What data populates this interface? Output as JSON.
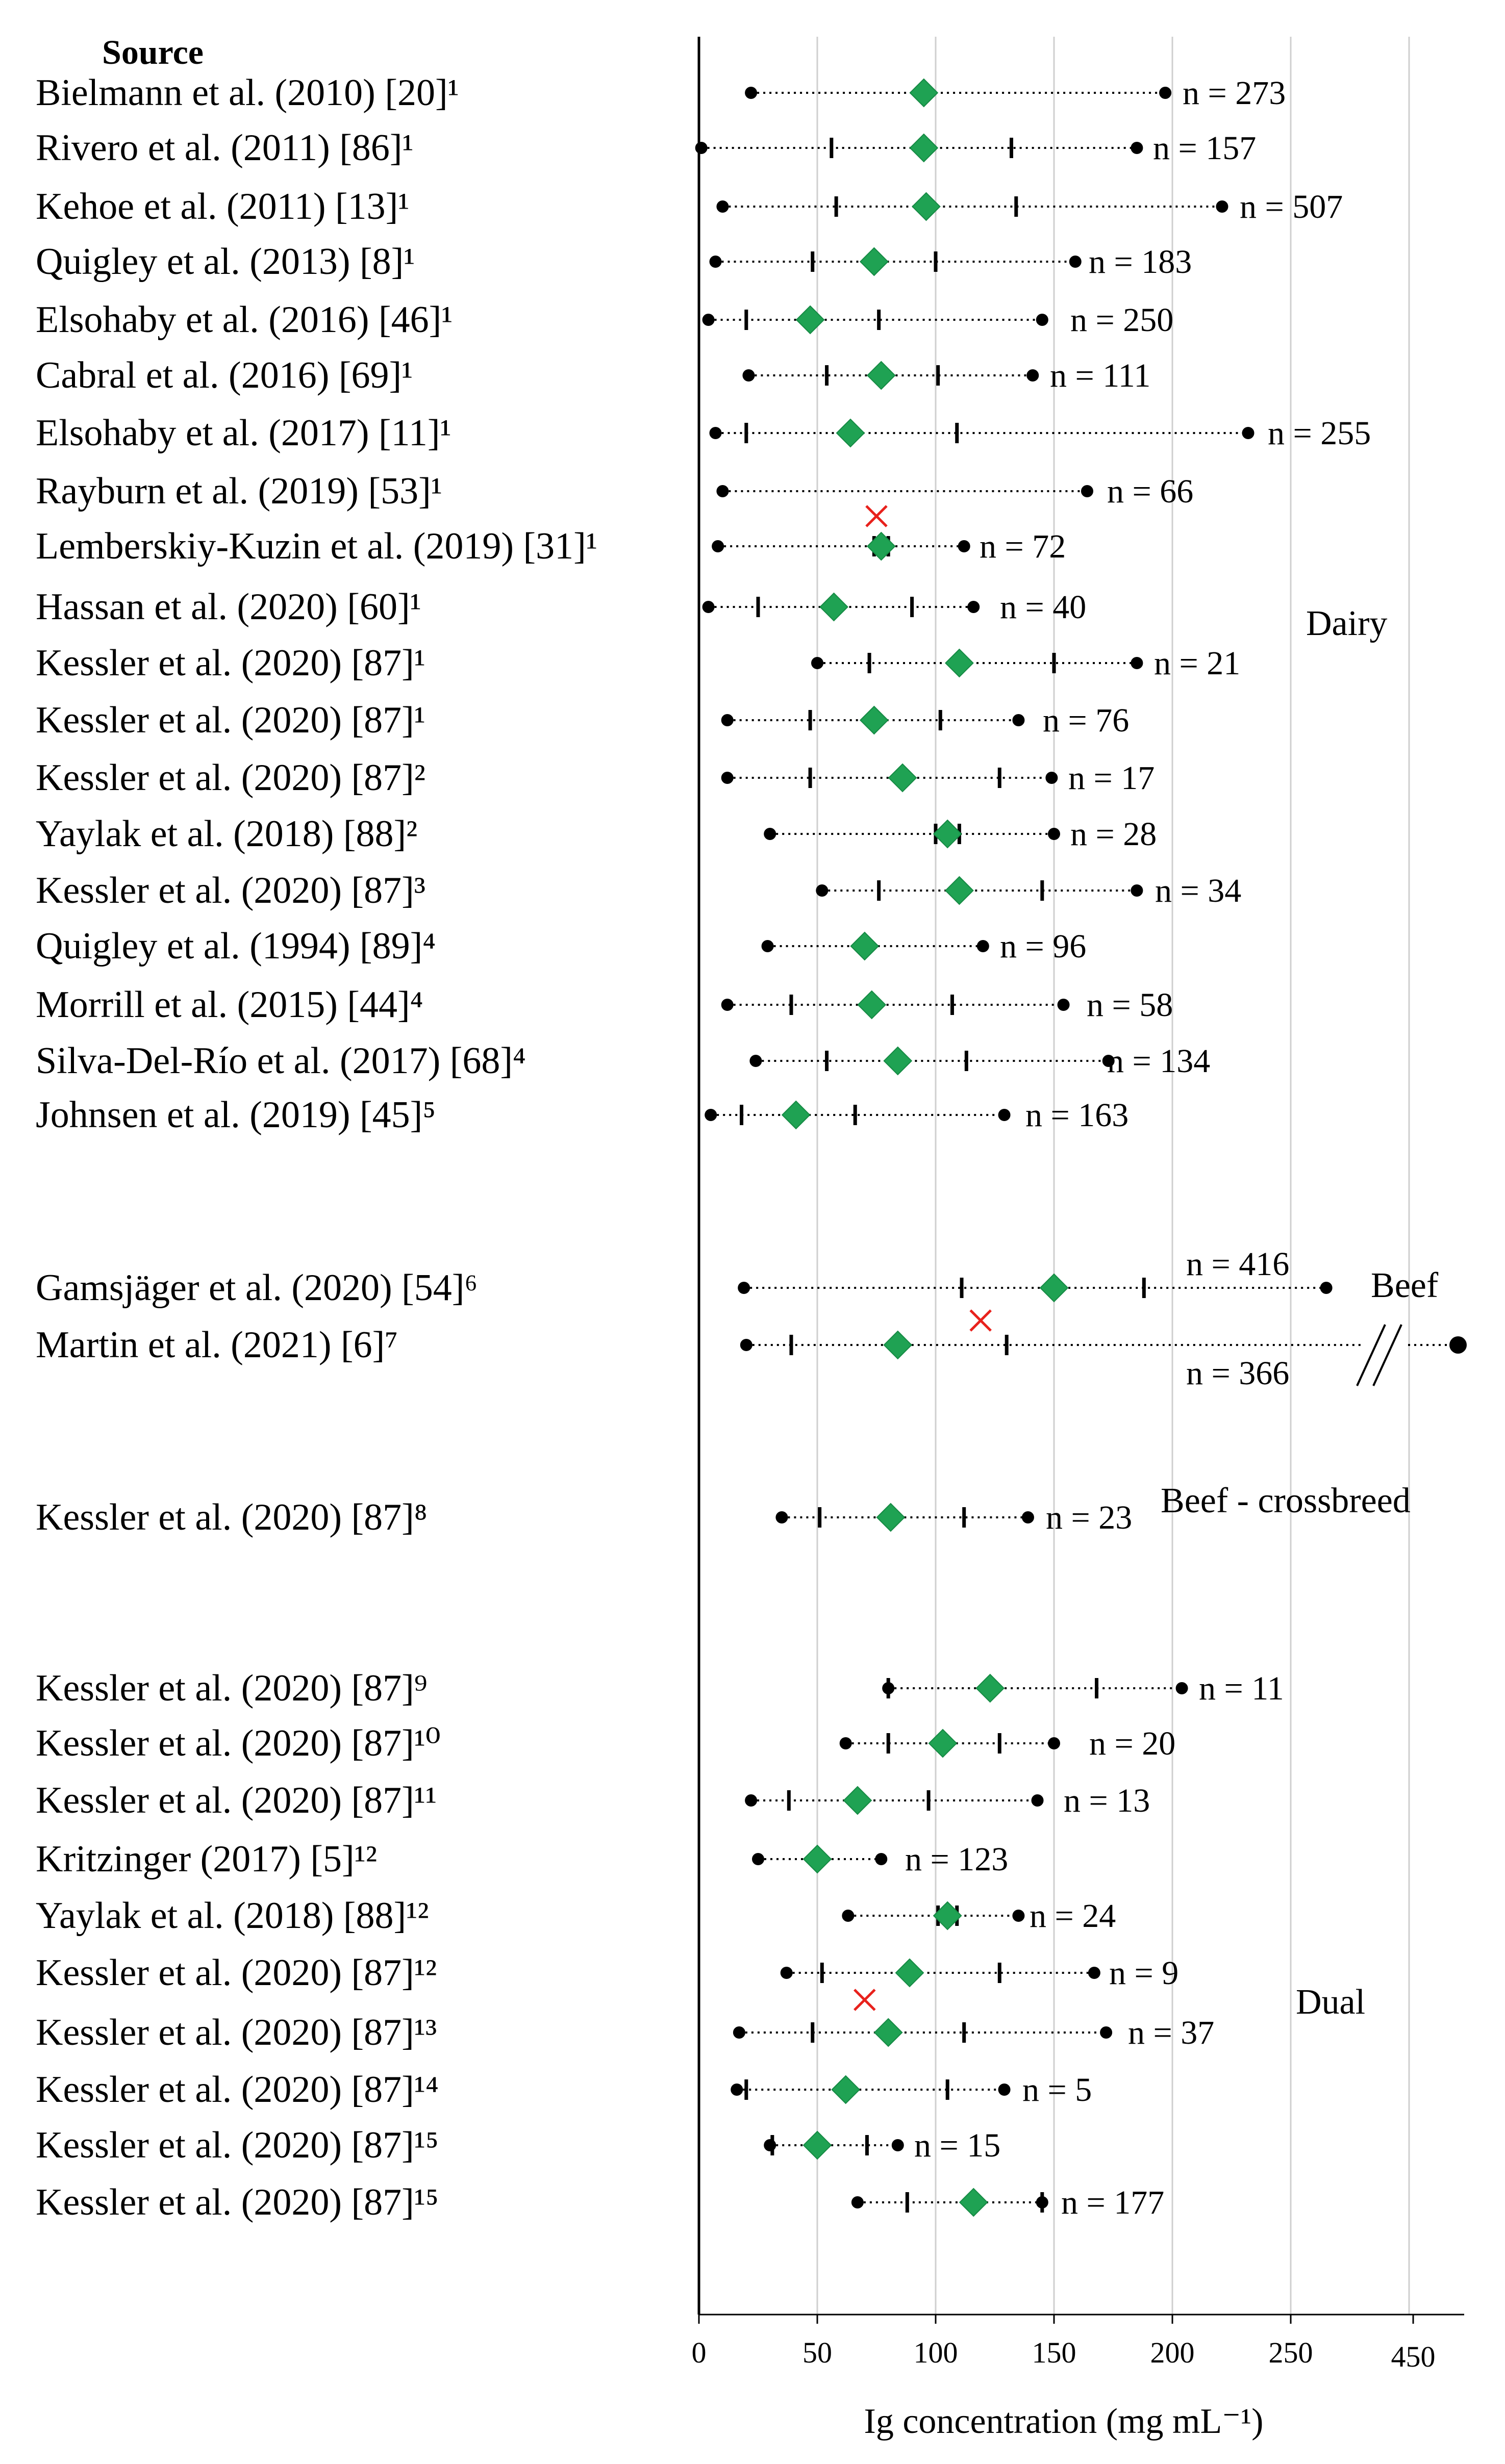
{
  "chart_data": {
    "type": "range-dot",
    "title": "Source",
    "xlabel": "Ig concentration (mg mL⁻¹)",
    "xlim": [
      0,
      300
    ],
    "x_ticks": [
      0,
      50,
      100,
      150,
      200,
      250
    ],
    "x_break_tick": "450",
    "x_break_value": 450,
    "gridlines": [
      50,
      100,
      150,
      200,
      250,
      300
    ],
    "legend": "none",
    "groups": [
      "Dairy",
      "Beef",
      "Beef - crossbreed",
      "Dual"
    ],
    "rows": [
      {
        "source": "Bielmann et al. (2010) [20]¹",
        "group": "Dairy",
        "min": 22,
        "max": 197,
        "mean": 95,
        "q1": null,
        "q3": null,
        "n": "n = 273",
        "cross": null
      },
      {
        "source": "Rivero et al. (2011) [86]¹",
        "group": "Dairy",
        "min": 1,
        "max": 185,
        "mean": 95,
        "q1": 56,
        "q3": 132,
        "n": "n = 157",
        "cross": null
      },
      {
        "source": "Kehoe et al. (2011) [13]¹",
        "group": "Dairy",
        "min": 10,
        "max": 221,
        "mean": 96,
        "q1": 58,
        "q3": 134,
        "n": "n = 507",
        "cross": null
      },
      {
        "source": "Quigley et al. (2013) [8]¹",
        "group": "Dairy",
        "min": 7,
        "max": 159,
        "mean": 74,
        "q1": 48,
        "q3": 100,
        "n": "n = 183",
        "cross": null
      },
      {
        "source": "Elsohaby et al. (2016) [46]¹",
        "group": "Dairy",
        "min": 4,
        "max": 145,
        "mean": 47,
        "q1": 20,
        "q3": 76,
        "n": "n = 250",
        "cross": null
      },
      {
        "source": "Cabral et al. (2016) [69]¹",
        "group": "Dairy",
        "min": 21,
        "max": 141,
        "mean": 77,
        "q1": 54,
        "q3": 101,
        "n": "n = 111",
        "cross": null
      },
      {
        "source": "Elsohaby et al. (2017) [11]¹",
        "group": "Dairy",
        "min": 7,
        "max": 232,
        "mean": 64,
        "q1": 20,
        "q3": 109,
        "n": "n = 255",
        "cross": null
      },
      {
        "source": "Rayburn et al. (2019) [53]¹",
        "group": "Dairy",
        "min": 10,
        "max": 164,
        "mean": null,
        "q1": null,
        "q3": null,
        "n": "n = 66",
        "cross": 75
      },
      {
        "source": "Lemberskiy-Kuzin et al. (2019) [31]¹",
        "group": "Dairy",
        "min": 8,
        "max": 112,
        "mean": 77,
        "q1": 74,
        "q3": 80,
        "n": "n = 72",
        "cross": null
      },
      {
        "source": "Hassan et al. (2020) [60]¹",
        "group": "Dairy",
        "min": 4,
        "max": 116,
        "mean": 57,
        "q1": 25,
        "q3": 90,
        "n": "n = 40",
        "cross": null
      },
      {
        "source": "Kessler et al. (2020) [87]¹",
        "group": "Dairy",
        "min": 50,
        "max": 185,
        "mean": 110,
        "q1": 72,
        "q3": 150,
        "n": "n = 21",
        "cross": null
      },
      {
        "source": "Kessler et al. (2020) [87]¹",
        "group": "Dairy",
        "min": 12,
        "max": 135,
        "mean": 74,
        "q1": 47,
        "q3": 102,
        "n": "n = 76",
        "cross": null
      },
      {
        "source": "Kessler et al. (2020) [87]²",
        "group": "Dairy",
        "min": 12,
        "max": 149,
        "mean": 86,
        "q1": 47,
        "q3": 127,
        "n": "n = 17",
        "cross": null
      },
      {
        "source": "Yaylak et al. (2018) [88]²",
        "group": "Dairy",
        "min": 30,
        "max": 150,
        "mean": 105,
        "q1": 100,
        "q3": 110,
        "n": "n = 28",
        "cross": null
      },
      {
        "source": "Kessler et al. (2020) [87]³",
        "group": "Dairy",
        "min": 52,
        "max": 185,
        "mean": 110,
        "q1": 76,
        "q3": 145,
        "n": "n = 34",
        "cross": null
      },
      {
        "source": "Quigley et al. (1994) [89]⁴",
        "group": "Dairy",
        "min": 29,
        "max": 120,
        "mean": 70,
        "q1": null,
        "q3": null,
        "n": "n = 96",
        "cross": null
      },
      {
        "source": "Morrill et al. (2015) [44]⁴",
        "group": "Dairy",
        "min": 12,
        "max": 154,
        "mean": 73,
        "q1": 39,
        "q3": 107,
        "n": "n = 58",
        "cross": null
      },
      {
        "source": "Silva-Del-Río et al. (2017) [68]⁴",
        "group": "Dairy",
        "min": 24,
        "max": 173,
        "mean": 84,
        "q1": 54,
        "q3": 113,
        "n": "n = 134",
        "cross": null
      },
      {
        "source": "Johnsen et al. (2019) [45]⁵",
        "group": "Dairy",
        "min": 5,
        "max": 129,
        "mean": 41,
        "q1": 18,
        "q3": 66,
        "n": "n = 163",
        "cross": null
      },
      {
        "source": "Gamsjäger et al. (2020) [54]⁶",
        "group": "Beef",
        "min": 19,
        "max": 265,
        "mean": 150,
        "q1": 111,
        "q3": 188,
        "n": "n = 416",
        "cross": null
      },
      {
        "source": "Martin et al. (2021) [6]⁷",
        "group": "Beef",
        "min": 20,
        "max": 450,
        "mean": 84,
        "q1": 39,
        "q3": 130,
        "n": "n = 366",
        "cross": 119
      },
      {
        "source": "Kessler et al. (2020) [87]⁸",
        "group": "Beef - crossbreed",
        "min": 35,
        "max": 139,
        "mean": 81,
        "q1": 51,
        "q3": 112,
        "n": "n = 23",
        "cross": null
      },
      {
        "source": "Kessler et al. (2020) [87]⁹",
        "group": "Dual",
        "min": 80,
        "max": 204,
        "mean": 123,
        "q1": 80,
        "q3": 168,
        "n": "n = 11",
        "cross": null
      },
      {
        "source": "Kessler et al. (2020) [87]¹⁰",
        "group": "Dual",
        "min": 62,
        "max": 150,
        "mean": 103,
        "q1": 80,
        "q3": 127,
        "n": "n = 20",
        "cross": null
      },
      {
        "source": "Kessler et al. (2020) [87]¹¹",
        "group": "Dual",
        "min": 22,
        "max": 143,
        "mean": 67,
        "q1": 38,
        "q3": 97,
        "n": "n = 13",
        "cross": null
      },
      {
        "source": "Kritzinger (2017) [5]¹²",
        "group": "Dual",
        "min": 25,
        "max": 77,
        "mean": 50,
        "q1": null,
        "q3": null,
        "n": "n = 123",
        "cross": null
      },
      {
        "source": "Yaylak et al. (2018) [88]¹²",
        "group": "Dual",
        "min": 63,
        "max": 135,
        "mean": 105,
        "q1": 101,
        "q3": 109,
        "n": "n = 24",
        "cross": null
      },
      {
        "source": "Kessler et al. (2020) [87]¹²",
        "group": "Dual",
        "min": 37,
        "max": 167,
        "mean": 89,
        "q1": 52,
        "q3": 127,
        "n": "n = 9",
        "cross": 70
      },
      {
        "source": "Kessler et al. (2020) [87]¹³",
        "group": "Dual",
        "min": 17,
        "max": 172,
        "mean": 80,
        "q1": 48,
        "q3": 112,
        "n": "n = 37",
        "cross": null
      },
      {
        "source": "Kessler et al. (2020) [87]¹⁴",
        "group": "Dual",
        "min": 16,
        "max": 129,
        "mean": 62,
        "q1": 20,
        "q3": 105,
        "n": "n = 5",
        "cross": null
      },
      {
        "source": "Kessler et al. (2020) [87]¹⁵",
        "group": "Dual",
        "min": 30,
        "max": 84,
        "mean": 50,
        "q1": 31,
        "q3": 71,
        "n": "n = 15",
        "cross": null
      },
      {
        "source": "Kessler et al. (2020) [87]¹⁵",
        "group": "Dual",
        "min": 67,
        "max": 145,
        "mean": 116,
        "q1": 88,
        "q3": 145,
        "n": "n = 177",
        "cross": null
      }
    ]
  }
}
